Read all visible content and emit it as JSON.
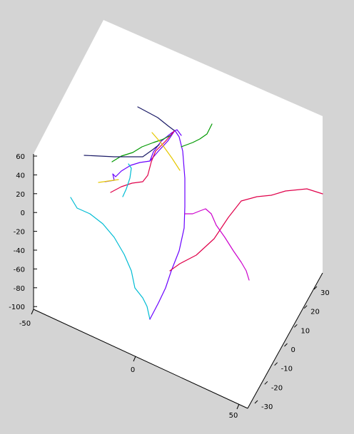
{
  "chart_data": {
    "type": "line",
    "title": "",
    "xlabel": "",
    "ylabel": "",
    "zlabel": "",
    "grid": false,
    "axes": {
      "z_ticks": [
        60,
        40,
        20,
        0,
        -20,
        -40,
        -60,
        -80,
        -100
      ],
      "x_ticks": [
        -50,
        0,
        50
      ],
      "y_ticks": [
        30,
        20,
        10,
        0,
        -10,
        -20,
        -30
      ]
    },
    "series": [
      {
        "color": "#00bcd4",
        "points": [
          [
            99,
            277
          ],
          [
            108,
            292
          ],
          [
            126,
            300
          ],
          [
            144,
            314
          ],
          [
            160,
            333
          ],
          [
            174,
            357
          ],
          [
            184,
            380
          ],
          [
            189,
            404
          ],
          [
            200,
            418
          ],
          [
            206,
            430
          ],
          [
            210,
            448
          ]
        ]
      },
      {
        "color": "#6a00ff",
        "points": [
          [
            210,
            448
          ],
          [
            222,
            425
          ],
          [
            232,
            404
          ],
          [
            240,
            380
          ],
          [
            251,
            352
          ],
          [
            258,
            320
          ],
          [
            259,
            290
          ],
          [
            259,
            250
          ],
          [
            256,
            212
          ],
          [
            251,
            192
          ],
          [
            245,
            183
          ],
          [
            235,
            198
          ],
          [
            222,
            212
          ],
          [
            210,
            226
          ],
          [
            196,
            228
          ],
          [
            183,
            232
          ],
          [
            170,
            240
          ],
          [
            162,
            248
          ],
          [
            158,
            244
          ],
          [
            160,
            253
          ],
          [
            147,
            255
          ]
        ]
      },
      {
        "color": "#6a00ff",
        "points": [
          [
            210,
            226
          ],
          [
            215,
            213
          ],
          [
            226,
            198
          ],
          [
            241,
            186
          ],
          [
            248,
            182
          ],
          [
            254,
            190
          ]
        ]
      },
      {
        "color": "#e0004a",
        "points": [
          [
            238,
            380
          ],
          [
            252,
            370
          ],
          [
            275,
            358
          ],
          [
            300,
            335
          ],
          [
            320,
            305
          ],
          [
            338,
            282
          ],
          [
            360,
            276
          ],
          [
            380,
            274
          ],
          [
            400,
            268
          ],
          [
            430,
            265
          ],
          [
            452,
            272
          ]
        ]
      },
      {
        "color": "#e0004a",
        "points": [
          [
            155,
            270
          ],
          [
            170,
            262
          ],
          [
            185,
            257
          ],
          [
            200,
            255
          ],
          [
            207,
            246
          ],
          [
            212,
            227
          ],
          [
            218,
            212
          ],
          [
            232,
            198
          ],
          [
            244,
            184
          ]
        ]
      },
      {
        "color": "#cc00cc",
        "points": [
          [
            259,
            300
          ],
          [
            270,
            300
          ],
          [
            280,
            296
          ],
          [
            288,
            293
          ],
          [
            296,
            300
          ],
          [
            303,
            316
          ],
          [
            315,
            333
          ],
          [
            327,
            352
          ],
          [
            338,
            368
          ],
          [
            345,
            380
          ],
          [
            349,
            393
          ]
        ]
      },
      {
        "color": "#009900",
        "points": [
          [
            157,
            227
          ],
          [
            170,
            219
          ],
          [
            186,
            214
          ],
          [
            199,
            206
          ],
          [
            215,
            200
          ],
          [
            227,
            196
          ],
          [
            239,
            190
          ]
        ]
      },
      {
        "color": "#009900",
        "points": [
          [
            254,
            206
          ],
          [
            270,
            200
          ],
          [
            280,
            195
          ],
          [
            290,
            188
          ],
          [
            297,
            174
          ]
        ]
      },
      {
        "color": "#e6c800",
        "points": [
          [
            213,
            186
          ],
          [
            226,
            201
          ],
          [
            241,
            222
          ],
          [
            252,
            239
          ]
        ]
      },
      {
        "color": "#e6c800",
        "points": [
          [
            138,
            256
          ],
          [
            152,
            254
          ],
          [
            166,
            252
          ]
        ]
      },
      {
        "color": "#1a1a66",
        "points": [
          [
            193,
            150
          ],
          [
            208,
            158
          ],
          [
            221,
            165
          ],
          [
            236,
            177
          ],
          [
            244,
            183
          ]
        ]
      },
      {
        "color": "#1a1a66",
        "points": [
          [
            118,
            218
          ],
          [
            140,
            219
          ],
          [
            160,
            220
          ],
          [
            180,
            220
          ],
          [
            200,
            220
          ],
          [
            214,
            210
          ],
          [
            223,
            203
          ]
        ]
      },
      {
        "color": "#00bcd4",
        "points": [
          [
            172,
            276
          ],
          [
            177,
            265
          ],
          [
            182,
            250
          ],
          [
            184,
            236
          ],
          [
            180,
            230
          ]
        ]
      }
    ]
  }
}
